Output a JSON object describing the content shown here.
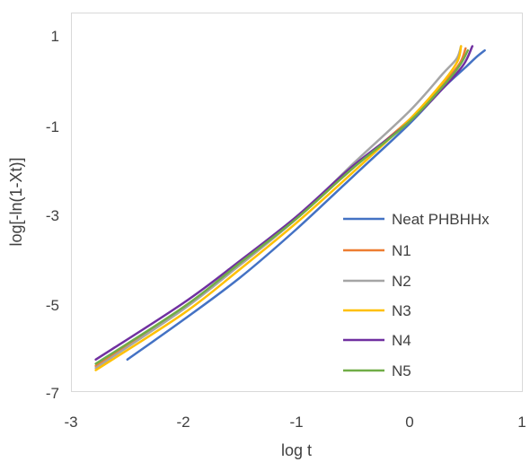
{
  "chart_data": {
    "type": "line",
    "title": "",
    "xlabel": "log t",
    "ylabel": "log[-ln(1-Xt)]",
    "xlim": [
      -3,
      1
    ],
    "ylim": [
      -7,
      2
    ],
    "x_ticks": [
      "-3",
      "-2",
      "-1",
      "0",
      "1"
    ],
    "y_ticks": [
      "1",
      "-1",
      "-3",
      "-5",
      "-7"
    ],
    "grid": false,
    "legend_position": "right",
    "series": [
      {
        "name": "Neat PHBHHx",
        "color": "#4472C4",
        "points": [
          [
            -2.5,
            -6.25
          ],
          [
            -2.0,
            -5.3
          ],
          [
            -1.5,
            -4.3
          ],
          [
            -1.0,
            -3.15
          ],
          [
            -0.5,
            -1.9
          ],
          [
            0.0,
            -0.65
          ],
          [
            0.3,
            0.2
          ],
          [
            0.5,
            0.7
          ],
          [
            0.6,
            0.95
          ],
          [
            0.67,
            1.1
          ]
        ]
      },
      {
        "name": "N1",
        "color": "#ED7D31",
        "points": [
          [
            -2.78,
            -6.4
          ],
          [
            -2.0,
            -5.0
          ],
          [
            -1.5,
            -4.0
          ],
          [
            -1.0,
            -2.9
          ],
          [
            -0.5,
            -1.7
          ],
          [
            0.0,
            -0.55
          ],
          [
            0.3,
            0.3
          ],
          [
            0.45,
            0.8
          ],
          [
            0.5,
            1.15
          ]
        ]
      },
      {
        "name": "N2",
        "color": "#A5A5A5",
        "points": [
          [
            -2.78,
            -6.45
          ],
          [
            -2.0,
            -5.05
          ],
          [
            -1.5,
            -4.0
          ],
          [
            -1.0,
            -2.9
          ],
          [
            -0.5,
            -1.6
          ],
          [
            0.0,
            -0.35
          ],
          [
            0.3,
            0.55
          ],
          [
            0.42,
            0.9
          ],
          [
            0.46,
            1.2
          ]
        ]
      },
      {
        "name": "N3",
        "color": "#FFC000",
        "points": [
          [
            -2.78,
            -6.5
          ],
          [
            -2.0,
            -5.15
          ],
          [
            -1.5,
            -4.1
          ],
          [
            -1.0,
            -3.0
          ],
          [
            -0.5,
            -1.8
          ],
          [
            0.0,
            -0.55
          ],
          [
            0.3,
            0.35
          ],
          [
            0.43,
            0.85
          ],
          [
            0.46,
            1.2
          ]
        ]
      },
      {
        "name": "N4",
        "color": "#7030A0",
        "points": [
          [
            -2.78,
            -6.25
          ],
          [
            -2.0,
            -4.9
          ],
          [
            -1.5,
            -3.9
          ],
          [
            -1.0,
            -2.85
          ],
          [
            -0.5,
            -1.65
          ],
          [
            0.0,
            -0.6
          ],
          [
            0.3,
            0.2
          ],
          [
            0.48,
            0.75
          ],
          [
            0.56,
            1.2
          ]
        ]
      },
      {
        "name": "N5",
        "color": "#70AD47",
        "points": [
          [
            -2.78,
            -6.35
          ],
          [
            -2.0,
            -5.0
          ],
          [
            -1.5,
            -3.95
          ],
          [
            -1.0,
            -2.9
          ],
          [
            -0.5,
            -1.7
          ],
          [
            0.0,
            -0.6
          ],
          [
            0.3,
            0.25
          ],
          [
            0.45,
            0.75
          ],
          [
            0.52,
            1.1
          ]
        ]
      }
    ]
  }
}
